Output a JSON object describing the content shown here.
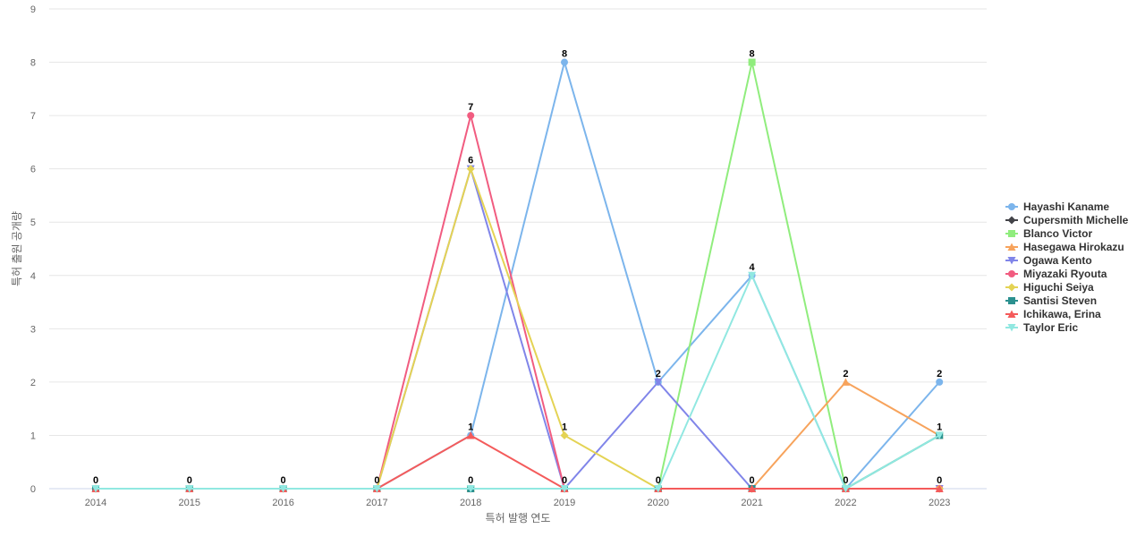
{
  "chart_data": {
    "type": "line",
    "xlabel": "특허 발행 연도",
    "ylabel": "특허 출원 공개량",
    "x": [
      "2014",
      "2015",
      "2016",
      "2017",
      "2018",
      "2019",
      "2020",
      "2021",
      "2022",
      "2023"
    ],
    "ylim": [
      0,
      9
    ],
    "yticks": [
      "0",
      "1",
      "2",
      "3",
      "4",
      "5",
      "6",
      "7",
      "8",
      "9"
    ],
    "grid": true,
    "legend_position": "right",
    "series": [
      {
        "name": "Hayashi Kaname",
        "color": "#7cb5ec",
        "marker": "circle",
        "values": [
          0,
          0,
          0,
          0,
          1,
          8,
          2,
          4,
          0,
          2
        ]
      },
      {
        "name": "Cupersmith Michelle",
        "color": "#434348",
        "marker": "diamond",
        "values": [
          0,
          0,
          0,
          0,
          0,
          0,
          0,
          0,
          0,
          0
        ]
      },
      {
        "name": "Blanco Victor",
        "color": "#90ed7d",
        "marker": "square",
        "values": [
          0,
          0,
          0,
          0,
          0,
          0,
          0,
          8,
          0,
          1
        ]
      },
      {
        "name": "Hasegawa Hirokazu",
        "color": "#f7a35c",
        "marker": "triangle",
        "values": [
          0,
          0,
          0,
          0,
          0,
          0,
          0,
          0,
          2,
          1
        ]
      },
      {
        "name": "Ogawa Kento",
        "color": "#8085e9",
        "marker": "triangle-down",
        "values": [
          0,
          0,
          0,
          0,
          6,
          0,
          2,
          0,
          0,
          0
        ]
      },
      {
        "name": "Miyazaki Ryouta",
        "color": "#f15c80",
        "marker": "circle",
        "values": [
          0,
          0,
          0,
          0,
          7,
          0,
          0,
          0,
          0,
          0
        ]
      },
      {
        "name": "Higuchi Seiya",
        "color": "#e4d354",
        "marker": "diamond",
        "values": [
          0,
          0,
          0,
          0,
          6,
          1,
          0,
          0,
          0,
          0
        ]
      },
      {
        "name": "Santisi Steven",
        "color": "#2b908f",
        "marker": "square",
        "values": [
          0,
          0,
          0,
          0,
          0,
          0,
          0,
          0,
          0,
          1
        ]
      },
      {
        "name": "Ichikawa, Erina",
        "color": "#f45b5b",
        "marker": "triangle",
        "values": [
          0,
          0,
          0,
          0,
          1,
          0,
          0,
          0,
          0,
          0
        ]
      },
      {
        "name": "Taylor Eric",
        "color": "#91e8e1",
        "marker": "triangle-down",
        "values": [
          0,
          0,
          0,
          0,
          0,
          0,
          0,
          4,
          0,
          1
        ]
      }
    ],
    "data_labels": [
      {
        "x": "2014",
        "y": 0,
        "text": "0"
      },
      {
        "x": "2015",
        "y": 0,
        "text": "0"
      },
      {
        "x": "2016",
        "y": 0,
        "text": "0"
      },
      {
        "x": "2017",
        "y": 0,
        "text": "0"
      },
      {
        "x": "2018",
        "y": 7,
        "text": "7"
      },
      {
        "x": "2018",
        "y": 6,
        "text": "6"
      },
      {
        "x": "2018",
        "y": 1,
        "text": "1"
      },
      {
        "x": "2018",
        "y": 0,
        "text": "0"
      },
      {
        "x": "2019",
        "y": 8,
        "text": "8"
      },
      {
        "x": "2019",
        "y": 1,
        "text": "1"
      },
      {
        "x": "2019",
        "y": 0,
        "text": "0"
      },
      {
        "x": "2020",
        "y": 2,
        "text": "2"
      },
      {
        "x": "2020",
        "y": 0,
        "text": "0"
      },
      {
        "x": "2021",
        "y": 8,
        "text": "8"
      },
      {
        "x": "2021",
        "y": 4,
        "text": "4"
      },
      {
        "x": "2021",
        "y": 0,
        "text": "0"
      },
      {
        "x": "2022",
        "y": 2,
        "text": "2"
      },
      {
        "x": "2022",
        "y": 0,
        "text": "0"
      },
      {
        "x": "2023",
        "y": 2,
        "text": "2"
      },
      {
        "x": "2023",
        "y": 1,
        "text": "1"
      },
      {
        "x": "2023",
        "y": 0,
        "text": "0"
      }
    ]
  }
}
